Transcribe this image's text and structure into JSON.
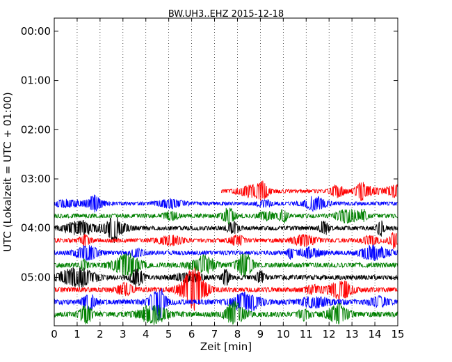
{
  "chart_data": {
    "type": "line",
    "title": "BW.UH3..EHZ 2015-12-18",
    "xlabel": "Zeit  [min]",
    "ylabel": "UTC (Lokalzeit = UTC + 01:00)",
    "xlim": [
      0,
      15
    ],
    "x_ticks": [
      "0",
      "1",
      "2",
      "3",
      "4",
      "5",
      "6",
      "7",
      "8",
      "9",
      "10",
      "11",
      "12",
      "13",
      "14",
      "15"
    ],
    "y_ticks": [
      "00:00",
      "01:00",
      "02:00",
      "03:00",
      "04:00",
      "05:00"
    ],
    "grid": "vertical dotted",
    "series_colors": [
      "#0000ff",
      "#008000",
      "#000000",
      "#ff0000"
    ],
    "traces": [
      {
        "time": "03:15",
        "start_min": 7.3,
        "end_min": 15,
        "color": "#ff0000",
        "amplitude": 0.35
      },
      {
        "time": "03:30",
        "start_min": 0,
        "end_min": 15,
        "color": "#0000ff",
        "amplitude": 0.35
      },
      {
        "time": "03:45",
        "start_min": 0,
        "end_min": 15,
        "color": "#008000",
        "amplitude": 0.4
      },
      {
        "time": "04:00",
        "start_min": 0,
        "end_min": 15,
        "color": "#000000",
        "amplitude": 0.4
      },
      {
        "time": "04:15",
        "start_min": 0,
        "end_min": 15,
        "color": "#ff0000",
        "amplitude": 0.4
      },
      {
        "time": "04:30",
        "start_min": 0,
        "end_min": 15,
        "color": "#0000ff",
        "amplitude": 0.4
      },
      {
        "time": "04:45",
        "start_min": 0,
        "end_min": 15,
        "color": "#008000",
        "amplitude": 0.45
      },
      {
        "time": "05:00",
        "start_min": 0,
        "end_min": 15,
        "color": "#000000",
        "amplitude": 0.45
      },
      {
        "time": "05:15",
        "start_min": 0,
        "end_min": 15,
        "color": "#ff0000",
        "amplitude": 0.45
      },
      {
        "time": "05:30",
        "start_min": 0,
        "end_min": 15,
        "color": "#0000ff",
        "amplitude": 0.5
      },
      {
        "time": "05:45",
        "start_min": 0,
        "end_min": 15,
        "color": "#008000",
        "amplitude": 0.5
      }
    ]
  }
}
